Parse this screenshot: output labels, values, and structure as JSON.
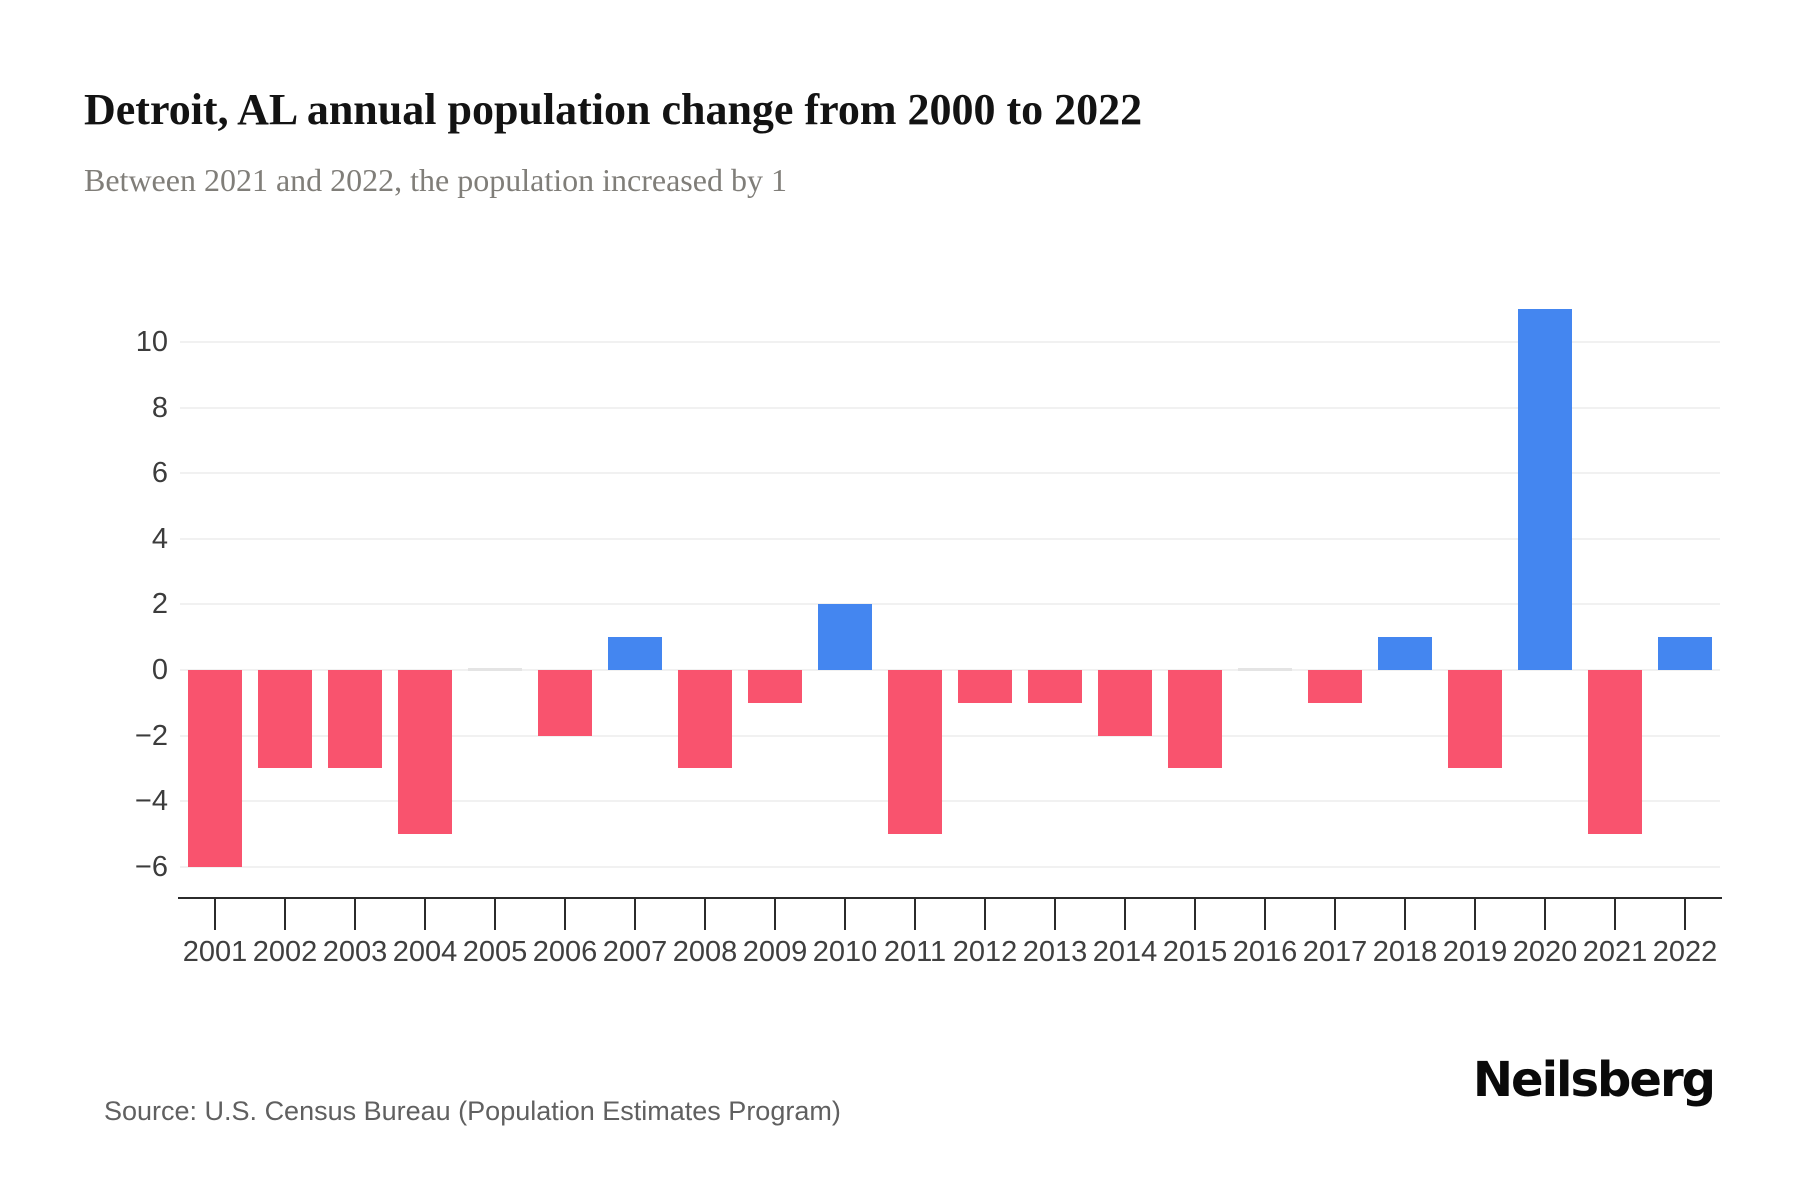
{
  "header": {
    "title": "Detroit, AL annual population change from 2000 to 2022",
    "subtitle": "Between 2021 and 2022, the population increased by 1"
  },
  "chart_data": {
    "type": "bar",
    "title": "Detroit, AL annual population change from 2000 to 2022",
    "categories": [
      "2001",
      "2002",
      "2003",
      "2004",
      "2005",
      "2006",
      "2007",
      "2008",
      "2009",
      "2010",
      "2011",
      "2012",
      "2013",
      "2014",
      "2015",
      "2016",
      "2017",
      "2018",
      "2019",
      "2020",
      "2021",
      "2022"
    ],
    "values": [
      -6,
      -3,
      -3,
      -5,
      0,
      -2,
      1,
      -3,
      -1,
      2,
      -5,
      -1,
      -1,
      -2,
      -3,
      0,
      -1,
      1,
      -3,
      11,
      -5,
      1
    ],
    "xlabel": "",
    "ylabel": "",
    "ylim": [
      -7,
      12
    ],
    "yticks": [
      10,
      8,
      6,
      4,
      2,
      0,
      -2,
      -4,
      -6
    ],
    "grid": true,
    "legend": false,
    "colors": {
      "positive": "#4486F0",
      "negative": "#F9536E",
      "zero": "#E4E4E4",
      "gridline": "#F1F1F1",
      "axis": "#2B2B2B"
    }
  },
  "footer": {
    "source": "Source: U.S. Census Bureau (Population Estimates Program)",
    "brand": "Neilsberg"
  }
}
